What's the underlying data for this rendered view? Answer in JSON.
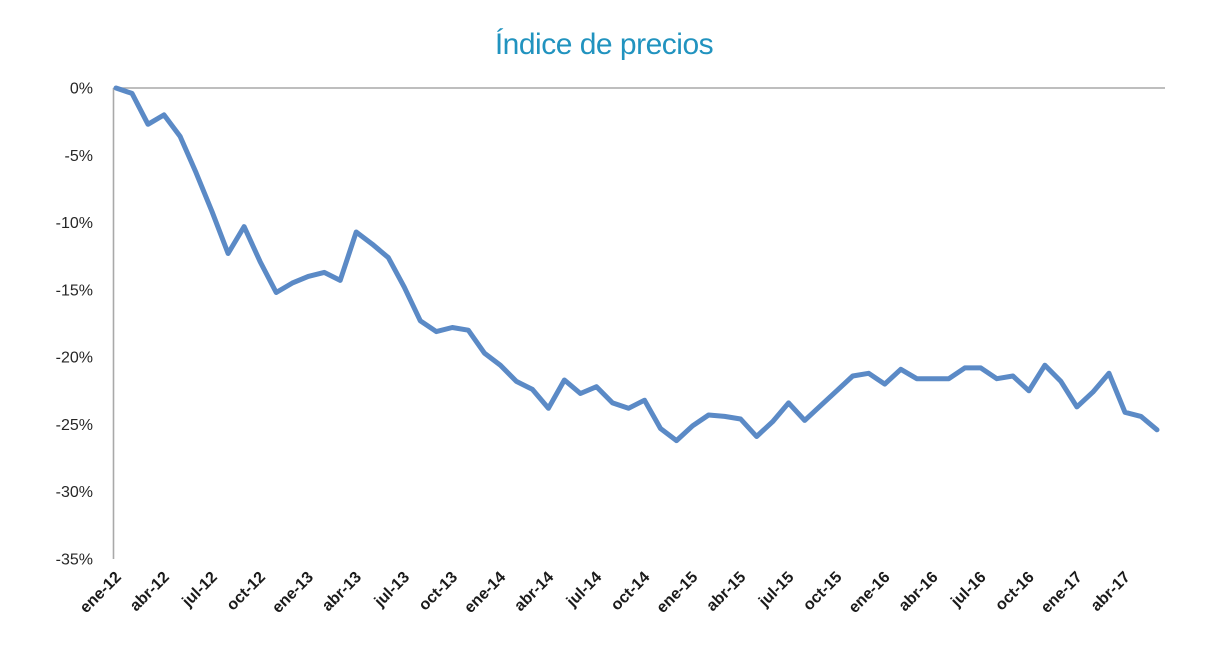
{
  "chart_data": {
    "type": "line",
    "title": "Índice de precios",
    "xlabel": "",
    "ylabel": "",
    "unit": "%",
    "grid": false,
    "legend": "none",
    "ylim": [
      -35,
      0
    ],
    "y_ticks": [
      0,
      -5,
      -10,
      -15,
      -20,
      -25,
      -30,
      -35
    ],
    "y_tick_labels": [
      "0%",
      "-5%",
      "-10%",
      "-15%",
      "-20%",
      "-25%",
      "-30%",
      "-35%"
    ],
    "x_tick_every": 3,
    "x_tick_labels": [
      "ene-12",
      "abr-12",
      "jul-12",
      "oct-12",
      "ene-13",
      "abr-13",
      "jul-13",
      "oct-13",
      "ene-14",
      "abr-14",
      "jul-14",
      "oct-14",
      "ene-15",
      "abr-15",
      "jul-15",
      "oct-15",
      "ene-16",
      "abr-16",
      "jul-16",
      "oct-16",
      "ene-17",
      "abr-17"
    ],
    "x": [
      "ene-12",
      "feb-12",
      "mar-12",
      "abr-12",
      "may-12",
      "jun-12",
      "jul-12",
      "ago-12",
      "sep-12",
      "oct-12",
      "nov-12",
      "dic-12",
      "ene-13",
      "feb-13",
      "mar-13",
      "abr-13",
      "may-13",
      "jun-13",
      "jul-13",
      "ago-13",
      "sep-13",
      "oct-13",
      "nov-13",
      "dic-13",
      "ene-14",
      "feb-14",
      "mar-14",
      "abr-14",
      "may-14",
      "jun-14",
      "jul-14",
      "ago-14",
      "sep-14",
      "oct-14",
      "nov-14",
      "dic-14",
      "ene-15",
      "feb-15",
      "mar-15",
      "abr-15",
      "may-15",
      "jun-15",
      "jul-15",
      "ago-15",
      "sep-15",
      "oct-15",
      "nov-15",
      "dic-15",
      "ene-16",
      "feb-16",
      "mar-16",
      "abr-16",
      "may-16",
      "jun-16",
      "jul-16",
      "ago-16",
      "sep-16",
      "oct-16",
      "nov-16",
      "dic-16",
      "ene-17",
      "feb-17",
      "mar-17",
      "abr-17",
      "may-17",
      "jun-17"
    ],
    "values": [
      0.0,
      -0.4,
      -2.7,
      -2.0,
      -3.6,
      -6.3,
      -9.2,
      -12.3,
      -10.3,
      -12.9,
      -15.2,
      -14.5,
      -14.0,
      -13.7,
      -14.3,
      -10.7,
      -11.6,
      -12.6,
      -14.8,
      -17.3,
      -18.1,
      -17.8,
      -18.0,
      -19.7,
      -20.6,
      -21.8,
      -22.4,
      -23.8,
      -21.7,
      -22.7,
      -22.2,
      -23.4,
      -23.8,
      -23.2,
      -25.3,
      -26.2,
      -25.1,
      -24.3,
      -24.4,
      -24.6,
      -25.9,
      -24.8,
      -23.4,
      -24.7,
      -23.6,
      -22.5,
      -21.4,
      -21.2,
      -22.0,
      -20.9,
      -21.6,
      -21.6,
      -21.6,
      -20.8,
      -20.8,
      -21.6,
      -21.4,
      -22.5,
      -20.6,
      -21.8,
      -23.7,
      -22.6,
      -21.2,
      -24.1,
      -24.4,
      -25.4
    ],
    "colors": {
      "title": "#2193BF",
      "line": "#5B8AC6",
      "axis": "#A9A9A9",
      "y_labels": "#262626",
      "x_labels": "#1A1A1A",
      "background": "#FFFFFF"
    }
  }
}
